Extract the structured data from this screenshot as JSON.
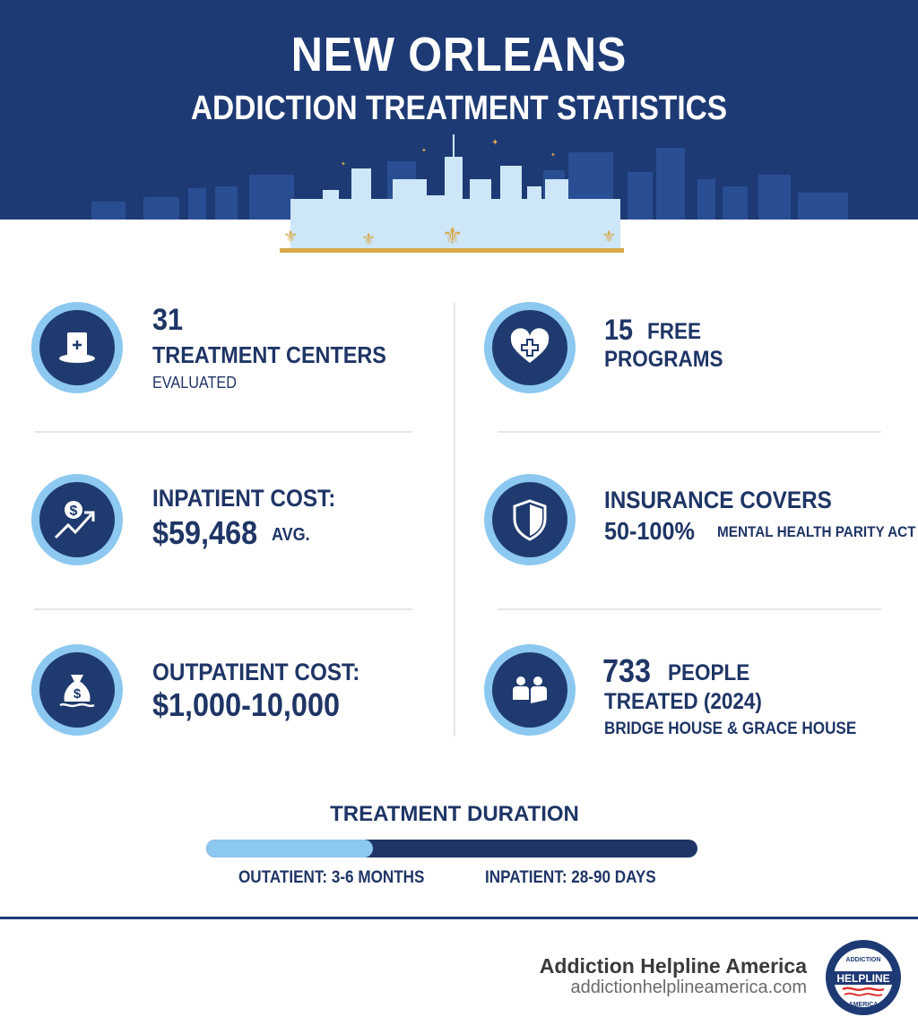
{
  "header": {
    "title": "NEW ORLEANS",
    "subtitle": "ADDICTION TREATMENT STATISTICS"
  },
  "stats": {
    "centers": {
      "number": "31",
      "label": "TREATMENT CENTERS",
      "sub": "EVALUATED",
      "icon": "top-hat-icon"
    },
    "free": {
      "number": "15",
      "label1": "FREE",
      "label2": "PROGRAMS",
      "icon": "heart-cross-icon"
    },
    "inpatient": {
      "label": "INPATIENT COST:",
      "value": "$59,468",
      "suffix": "AVG.",
      "icon": "dollar-growth-icon"
    },
    "insurance": {
      "label": "INSURANCE COVERS",
      "value": "50-100%",
      "suffix": "MENTAL HEALTH PARITY ACT",
      "icon": "shield-icon"
    },
    "outpatient": {
      "label": "OUTPATIENT COST:",
      "value": "$1,000-10,000",
      "icon": "money-bag-icon"
    },
    "treated": {
      "number": "733",
      "label1": "PEOPLE",
      "label2": "TREATED (2024)",
      "sub": "BRIDGE HOUSE & GRACE HOUSE",
      "icon": "people-icon"
    }
  },
  "duration": {
    "title": "TREATMENT DURATION",
    "outpatient": "OUTATIENT: 3-6 MONTHS",
    "inpatient": "INPATIENT: 28-90 DAYS",
    "outpatient_share": 0.34
  },
  "footer": {
    "brand": "Addiction Helpline America",
    "url": "addictionhelplineamerica.com",
    "badge": "ADDICTION HELPLINE AMERICA"
  },
  "colors": {
    "navy": "#1e3a75",
    "light_blue": "#8cc8f0",
    "gold": "#d9a94a"
  }
}
